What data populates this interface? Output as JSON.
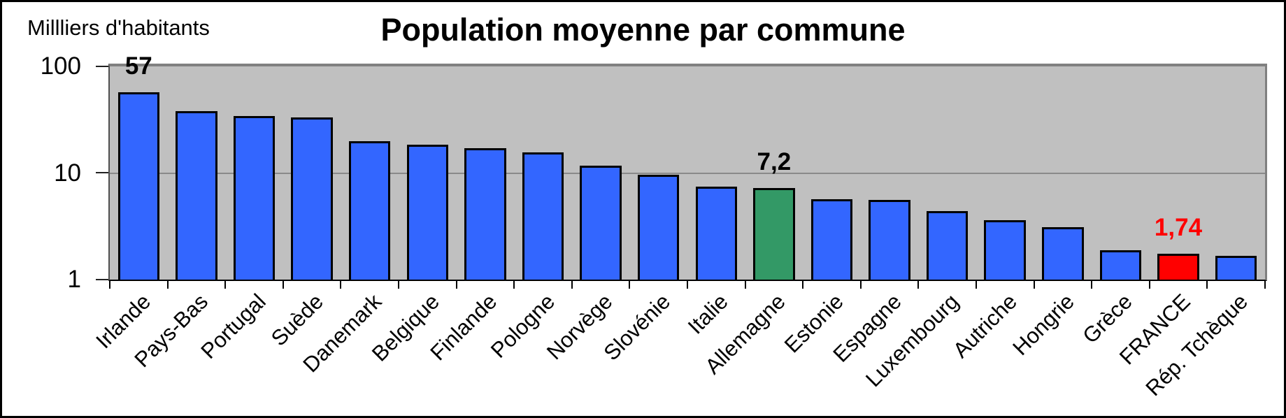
{
  "figure": {
    "background_color": "#ffffff",
    "frame_color": "#000000"
  },
  "chart_data": {
    "type": "bar",
    "title": "Population moyenne par commune",
    "y_axis_label": "Millliers d'habitants",
    "y_scale": "log10",
    "ylim": [
      1,
      100
    ],
    "y_tick_labels": [
      "100",
      "10",
      "1"
    ],
    "grid": "horizontal gridline at 10; plot top edge at 100; baseline at 1",
    "legend_position": "none",
    "plot_background_color": "#c0c0c0",
    "default_bar_color": "#3366ff",
    "highlight_colors": {
      "Allemagne": "#339966",
      "FRANCE": "#ff0000"
    },
    "categories": [
      "Irlande",
      "Pays-Bas",
      "Portugal",
      "Suède",
      "Danemark",
      "Belgique",
      "Finlande",
      "Pologne",
      "Norvège",
      "Slovénie",
      "Italie",
      "Allemagne",
      "Estonie",
      "Espagne",
      "Luxembourg",
      "Autriche",
      "Hongrie",
      "Grèce",
      "FRANCE",
      "Rép. Tchèque"
    ],
    "values": [
      57,
      38,
      34,
      33,
      20,
      18.5,
      17,
      15.6,
      11.8,
      9.6,
      7.5,
      7.2,
      5.7,
      5.6,
      4.4,
      3.6,
      3.1,
      1.9,
      1.74,
      1.68
    ],
    "bar_colors": [
      "#3366ff",
      "#3366ff",
      "#3366ff",
      "#3366ff",
      "#3366ff",
      "#3366ff",
      "#3366ff",
      "#3366ff",
      "#3366ff",
      "#3366ff",
      "#3366ff",
      "#339966",
      "#3366ff",
      "#3366ff",
      "#3366ff",
      "#3366ff",
      "#3366ff",
      "#3366ff",
      "#ff0000",
      "#3366ff"
    ],
    "value_labels": [
      "57",
      null,
      null,
      null,
      null,
      null,
      null,
      null,
      null,
      null,
      null,
      "7,2",
      null,
      null,
      null,
      null,
      null,
      null,
      "1,74",
      null
    ],
    "value_label_colors": [
      "#000000",
      null,
      null,
      null,
      null,
      null,
      null,
      null,
      null,
      null,
      null,
      "#000000",
      null,
      null,
      null,
      null,
      null,
      null,
      "#ff0000",
      null
    ]
  }
}
